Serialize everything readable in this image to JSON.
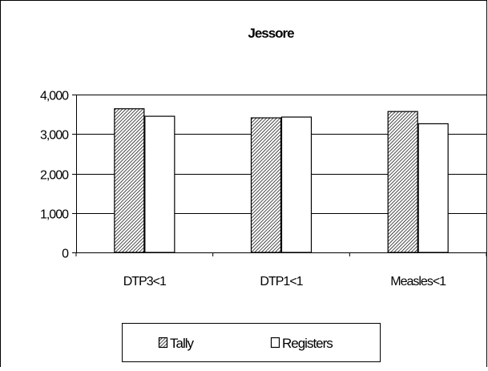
{
  "chart_data": {
    "type": "bar",
    "title": "Jessore",
    "xlabel": "",
    "ylabel": "",
    "categories": [
      "DTP3<1",
      "DTP1<1",
      "Measles<1"
    ],
    "series": [
      {
        "name": "Tally",
        "values": [
          3640,
          3410,
          3570
        ],
        "fill": "hatched"
      },
      {
        "name": "Registers",
        "values": [
          3450,
          3430,
          3260
        ],
        "fill": "#ffffff"
      }
    ],
    "ylim": [
      0,
      4000
    ],
    "yticks": [
      "0",
      "1,000",
      "2,000",
      "3,000",
      "4,000"
    ],
    "grid": true,
    "legend_position": "bottom"
  }
}
